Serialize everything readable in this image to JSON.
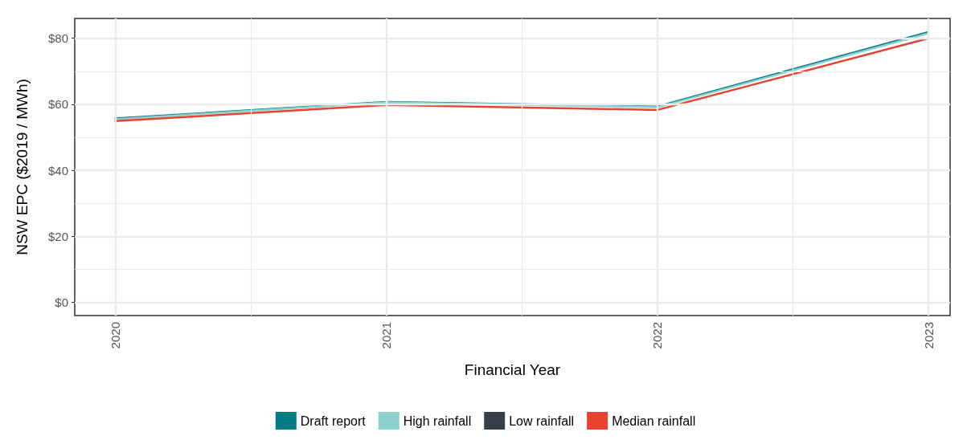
{
  "chart_data": {
    "type": "line",
    "xlabel": "Financial Year",
    "ylabel": "NSW EPC ($2019 / MWh)",
    "x": [
      2020,
      2021,
      2022,
      2023
    ],
    "series": [
      {
        "name": "Draft report",
        "color": "#007b82",
        "values": [
          55.7,
          60.7,
          59.3,
          81.9
        ]
      },
      {
        "name": "High rainfall",
        "color": "#8dd0cd",
        "values": [
          55.5,
          60.6,
          59.1,
          81.5
        ]
      },
      {
        "name": "Low rainfall",
        "color": "#36404a",
        "values": [
          null,
          null,
          null,
          null
        ]
      },
      {
        "name": "Median rainfall",
        "color": "#e8432f",
        "values": [
          54.9,
          59.8,
          58.3,
          80
        ]
      }
    ],
    "xlim": [
      2019.85,
      2023.08
    ],
    "xticks": [
      2020,
      {
        "value": 2020.5,
        "label": null
      },
      2021,
      {
        "value": 2021.5,
        "label": null
      },
      2022,
      {
        "value": 2022.5,
        "label": null
      },
      2023
    ],
    "ylim": [
      -4,
      86
    ],
    "yticks": [
      {
        "value": 0,
        "label": "$0"
      },
      {
        "value": 10,
        "label": null
      },
      {
        "value": 20,
        "label": "$20"
      },
      {
        "value": 30,
        "label": null
      },
      {
        "value": 40,
        "label": "$40"
      },
      {
        "value": 50,
        "label": null
      },
      {
        "value": 60,
        "label": "$60"
      },
      {
        "value": 70,
        "label": null
      },
      {
        "value": 80,
        "label": "$80"
      }
    ],
    "grid": true,
    "legend": "bottom",
    "marker": "none",
    "line_style": "solid"
  }
}
